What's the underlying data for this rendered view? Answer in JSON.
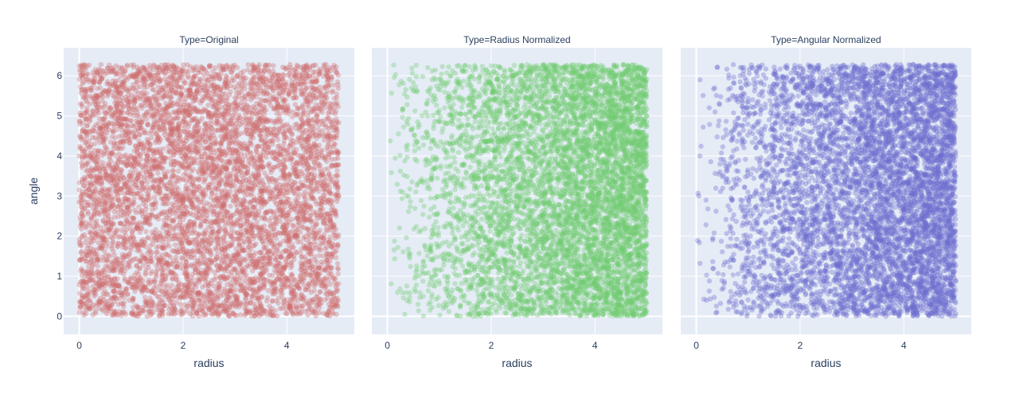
{
  "chart_data": {
    "type": "scatter",
    "x_field": "radius",
    "y_field": "angle",
    "xlabel": "radius",
    "ylabel": "angle",
    "xlim": [
      -0.3,
      5.3
    ],
    "ylim": [
      -0.45,
      6.7
    ],
    "x_ticks": [
      0,
      2,
      4
    ],
    "y_ticks": [
      0,
      1,
      2,
      3,
      4,
      5,
      6
    ],
    "grid": true,
    "marker_opacity": 0.35,
    "points_per_panel": 6500,
    "radius_range": [
      0,
      5
    ],
    "angle_range": [
      0,
      6.2832
    ],
    "panels": [
      {
        "facet_label": "Type=Original",
        "color": "#cd6e6e",
        "radius_distribution": "uniform"
      },
      {
        "facet_label": "Type=Radius Normalized",
        "color": "#6fcb6f",
        "radius_distribution": "proportional to radius"
      },
      {
        "facet_label": "Type=Angular Normalized",
        "color": "#6e6ecd",
        "radius_distribution": "proportional to radius"
      }
    ]
  }
}
